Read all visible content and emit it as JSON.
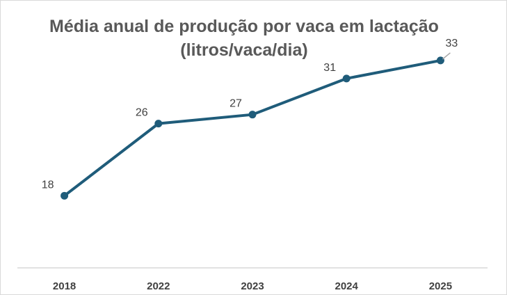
{
  "chart_data": {
    "type": "line",
    "title": "Média anual de produção por vaca em lactação (litros/vaca/dia)",
    "categories": [
      "2018",
      "2022",
      "2023",
      "2024",
      "2025"
    ],
    "series": [
      {
        "values": [
          18,
          26,
          27,
          31,
          33
        ],
        "color": "#1f5c7a"
      }
    ],
    "data_labels": [
      "18",
      "26",
      "27",
      "31",
      "33"
    ],
    "ylim": [
      10,
      35
    ],
    "grid": false,
    "legend": "none",
    "axis_color": "#d9d9d9"
  }
}
